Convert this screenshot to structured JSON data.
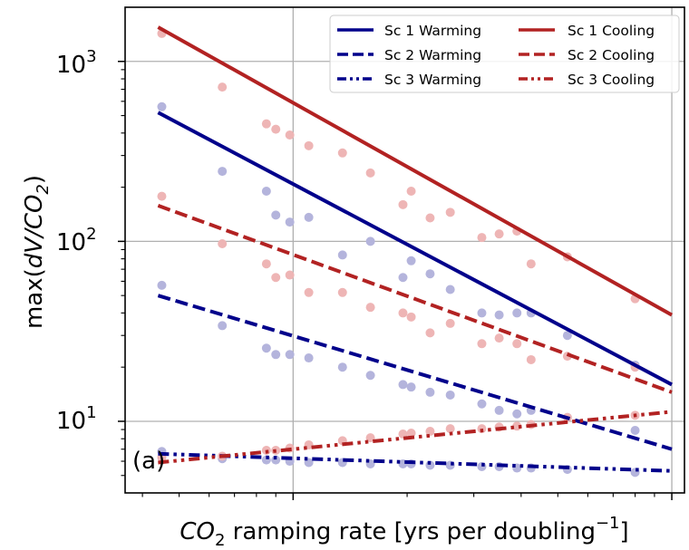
{
  "chart_data": {
    "type": "line",
    "xlabel_parts": [
      "CO",
      "2",
      " ramping rate [yrs per doubling",
      "−1",
      "]"
    ],
    "ylabel_parts": [
      "max(",
      "dV/CO",
      "2",
      ")"
    ],
    "yscale": "log",
    "xscale": "log",
    "xlim": [
      0.0036,
      0.108
    ],
    "ylim": [
      4,
      2000
    ],
    "grid": true,
    "legend_position": "top-right",
    "panel_label": "(a)",
    "y_tick_labels": [
      {
        "base": "10",
        "exp": "1",
        "value": 10
      },
      {
        "base": "10",
        "exp": "2",
        "value": 100
      },
      {
        "base": "10",
        "exp": "3",
        "value": 1000
      }
    ],
    "x_major_ticks": [
      0.01,
      0.1
    ],
    "x_minor_ticks": [
      0.004,
      0.005,
      0.006,
      0.007,
      0.008,
      0.009,
      0.02,
      0.03,
      0.04,
      0.05,
      0.06,
      0.07,
      0.08,
      0.09
    ],
    "colors": {
      "warming": "#00008b",
      "cooling": "#b22222",
      "warming_points": "#b4b4dc",
      "cooling_points": "#eeb5b5"
    },
    "series": [
      {
        "name": "Sc 1 Warming",
        "color": "#00008b",
        "dash": "solid",
        "fit": [
          [
            0.0044,
            520
          ],
          [
            0.1,
            16
          ]
        ],
        "points": [
          [
            0.0045,
            560
          ],
          [
            0.0065,
            245
          ],
          [
            0.0085,
            190
          ],
          [
            0.009,
            140
          ],
          [
            0.0098,
            128
          ],
          [
            0.011,
            136
          ],
          [
            0.0135,
            84
          ],
          [
            0.016,
            100
          ],
          [
            0.0195,
            63
          ],
          [
            0.0205,
            78
          ],
          [
            0.023,
            66
          ],
          [
            0.026,
            54
          ],
          [
            0.0315,
            40
          ],
          [
            0.035,
            39
          ],
          [
            0.039,
            40
          ],
          [
            0.0425,
            40
          ],
          [
            0.053,
            30
          ],
          [
            0.08,
            20.5
          ]
        ]
      },
      {
        "name": "Sc 2 Warming",
        "color": "#00008b",
        "dash": "dashed",
        "fit": [
          [
            0.0044,
            50
          ],
          [
            0.1,
            7
          ]
        ],
        "points": [
          [
            0.0045,
            57
          ],
          [
            0.0065,
            34
          ],
          [
            0.0085,
            25.5
          ],
          [
            0.009,
            23.5
          ],
          [
            0.0098,
            23.5
          ],
          [
            0.011,
            22.5
          ],
          [
            0.0135,
            20
          ],
          [
            0.016,
            18
          ],
          [
            0.0195,
            16
          ],
          [
            0.0205,
            15.5
          ],
          [
            0.023,
            14.5
          ],
          [
            0.026,
            14
          ],
          [
            0.0315,
            12.5
          ],
          [
            0.035,
            11.5
          ],
          [
            0.039,
            11
          ],
          [
            0.0425,
            11.5
          ],
          [
            0.053,
            10.5
          ],
          [
            0.08,
            8.9
          ]
        ]
      },
      {
        "name": "Sc 3 Warming",
        "color": "#00008b",
        "dash": "dashdotdot",
        "fit": [
          [
            0.0044,
            6.6
          ],
          [
            0.1,
            5.3
          ]
        ],
        "points": [
          [
            0.0045,
            6.8
          ],
          [
            0.0065,
            6.2
          ],
          [
            0.0085,
            6.1
          ],
          [
            0.009,
            6.1
          ],
          [
            0.0098,
            6.0
          ],
          [
            0.011,
            5.9
          ],
          [
            0.0135,
            5.9
          ],
          [
            0.016,
            5.8
          ],
          [
            0.0195,
            5.8
          ],
          [
            0.0205,
            5.8
          ],
          [
            0.023,
            5.7
          ],
          [
            0.026,
            5.7
          ],
          [
            0.0315,
            5.6
          ],
          [
            0.035,
            5.6
          ],
          [
            0.039,
            5.5
          ],
          [
            0.0425,
            5.5
          ],
          [
            0.053,
            5.4
          ],
          [
            0.08,
            5.2
          ]
        ]
      },
      {
        "name": "Sc 1 Cooling",
        "color": "#b22222",
        "dash": "solid",
        "fit": [
          [
            0.0044,
            1550
          ],
          [
            0.1,
            39
          ]
        ],
        "points": [
          [
            0.0045,
            1430
          ],
          [
            0.0065,
            720
          ],
          [
            0.0085,
            450
          ],
          [
            0.009,
            420
          ],
          [
            0.0098,
            390
          ],
          [
            0.011,
            340
          ],
          [
            0.0135,
            310
          ],
          [
            0.016,
            240
          ],
          [
            0.0195,
            160
          ],
          [
            0.0205,
            190
          ],
          [
            0.023,
            135
          ],
          [
            0.026,
            145
          ],
          [
            0.0315,
            105
          ],
          [
            0.035,
            110
          ],
          [
            0.039,
            114
          ],
          [
            0.0425,
            75
          ],
          [
            0.053,
            82
          ],
          [
            0.08,
            48
          ]
        ]
      },
      {
        "name": "Sc 2 Cooling",
        "color": "#b22222",
        "dash": "dashed",
        "fit": [
          [
            0.0044,
            158
          ],
          [
            0.1,
            14.5
          ]
        ],
        "points": [
          [
            0.0045,
            178
          ],
          [
            0.0065,
            97
          ],
          [
            0.0085,
            75
          ],
          [
            0.009,
            63
          ],
          [
            0.0098,
            65
          ],
          [
            0.011,
            52
          ],
          [
            0.0135,
            52
          ],
          [
            0.016,
            43
          ],
          [
            0.0195,
            40
          ],
          [
            0.0205,
            38
          ],
          [
            0.023,
            31
          ],
          [
            0.026,
            35
          ],
          [
            0.0315,
            27
          ],
          [
            0.035,
            29
          ],
          [
            0.039,
            27
          ],
          [
            0.0425,
            22
          ],
          [
            0.053,
            23
          ],
          [
            0.08,
            20
          ]
        ]
      },
      {
        "name": "Sc 3 Cooling",
        "color": "#b22222",
        "dash": "dashdotdot",
        "fit": [
          [
            0.0044,
            5.9
          ],
          [
            0.1,
            11.3
          ]
        ],
        "points": [
          [
            0.0045,
            6.3
          ],
          [
            0.0065,
            6.4
          ],
          [
            0.0085,
            6.9
          ],
          [
            0.009,
            6.9
          ],
          [
            0.0098,
            7.1
          ],
          [
            0.011,
            7.4
          ],
          [
            0.0135,
            7.8
          ],
          [
            0.016,
            8.1
          ],
          [
            0.0195,
            8.5
          ],
          [
            0.0205,
            8.6
          ],
          [
            0.023,
            8.8
          ],
          [
            0.026,
            9.1
          ],
          [
            0.0315,
            9.1
          ],
          [
            0.035,
            9.3
          ],
          [
            0.039,
            9.4
          ],
          [
            0.0425,
            9.6
          ],
          [
            0.053,
            10.5
          ],
          [
            0.08,
            10.8
          ]
        ]
      }
    ]
  }
}
